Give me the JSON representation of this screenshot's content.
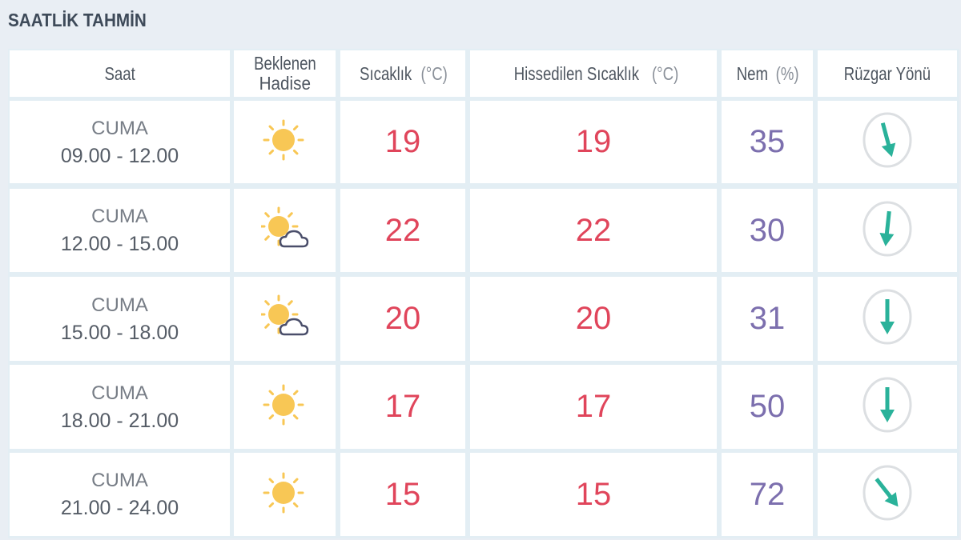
{
  "title": "SAATLİK TAHMİN",
  "colors": {
    "temperature": "#e0455b",
    "humidity": "#7c6fae",
    "wind_arrow": "#2ab29a",
    "sun": "#f8c755",
    "cloud": "#4a4e6a"
  },
  "columns": [
    {
      "label": "Saat",
      "unit": ""
    },
    {
      "label": "Beklenen",
      "label2": "Hadise"
    },
    {
      "label": "Sıcaklık",
      "unit": "(°C)"
    },
    {
      "label": "Hissedilen Sıcaklık",
      "unit": "(°C)"
    },
    {
      "label": "Nem",
      "unit": "(%)"
    },
    {
      "label": "Rüzgar Yönü",
      "unit": ""
    }
  ],
  "rows": [
    {
      "day": "CUMA",
      "time": "09.00 - 12.00",
      "icon": "sun-icon",
      "temp": "19",
      "feels": "19",
      "humidity": "35",
      "wind_rotation_deg": -15
    },
    {
      "day": "CUMA",
      "time": "12.00 - 15.00",
      "icon": "sun-cloud-icon",
      "temp": "22",
      "feels": "22",
      "humidity": "30",
      "wind_rotation_deg": 6
    },
    {
      "day": "CUMA",
      "time": "15.00 - 18.00",
      "icon": "sun-cloud-icon",
      "temp": "20",
      "feels": "20",
      "humidity": "31",
      "wind_rotation_deg": 0
    },
    {
      "day": "CUMA",
      "time": "18.00 - 21.00",
      "icon": "sun-icon",
      "temp": "17",
      "feels": "17",
      "humidity": "50",
      "wind_rotation_deg": 0
    },
    {
      "day": "CUMA",
      "time": "21.00 - 24.00",
      "icon": "sun-icon",
      "temp": "15",
      "feels": "15",
      "humidity": "72",
      "wind_rotation_deg": -38
    }
  ]
}
